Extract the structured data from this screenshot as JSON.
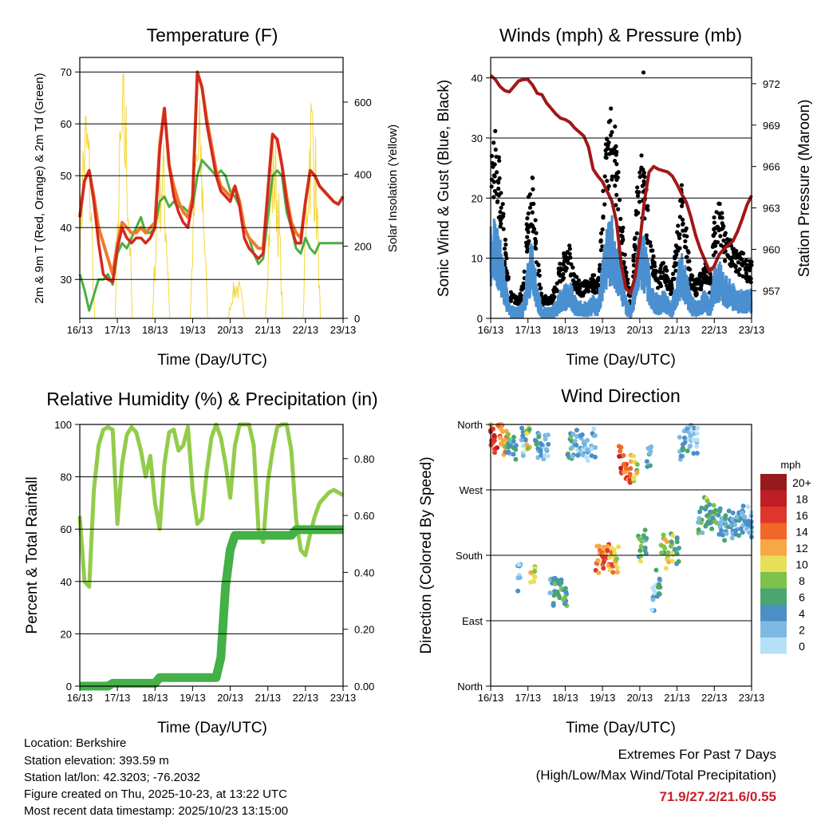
{
  "x_tick_labels": [
    "16/13",
    "17/13",
    "18/13",
    "19/13",
    "20/13",
    "21/13",
    "22/13",
    "23/13"
  ],
  "x_label": "Time (Day/UTC)",
  "chart_data": [
    {
      "type": "line",
      "title": "Temperature (F)",
      "xlabel": "Time (Day/UTC)",
      "ylabel": "2m & 9m T (Red, Orange) & 2m Td (Green)",
      "ylabel_right": "Solar Insolation (Yellow)",
      "x_step_hours": 3,
      "ylim": [
        22.5,
        72.8
      ],
      "ylim_right": [
        0,
        724
      ],
      "yticks": [
        30,
        40,
        50,
        60,
        70
      ],
      "yticks_right": [
        0,
        200,
        400,
        600
      ],
      "colors": {
        "t2m": "#d42a20",
        "t9m": "#f07a28",
        "td": "#4caf40",
        "solar": "#f5d63a"
      },
      "series": [
        {
          "name": "2m T",
          "values": [
            42,
            49,
            51,
            45,
            37,
            31,
            30,
            29.5,
            36,
            40,
            38,
            37,
            38,
            38,
            37,
            38,
            40,
            55,
            63,
            52,
            46,
            43,
            41,
            40,
            45,
            70,
            67,
            60,
            55,
            50,
            47,
            46,
            45,
            48,
            44,
            38,
            36,
            35,
            34,
            35,
            47,
            58,
            57,
            52,
            45,
            40,
            37,
            37,
            45,
            51,
            50,
            48,
            47,
            46,
            45,
            44.5,
            46
          ]
        },
        {
          "name": "9m T",
          "values": [
            42,
            49,
            51,
            46,
            40,
            37,
            34,
            31,
            37,
            41,
            40,
            39,
            39,
            40,
            39,
            40,
            41,
            56,
            63,
            52,
            48,
            45,
            43,
            42,
            46,
            70,
            67,
            61,
            56,
            51,
            48,
            47,
            46,
            48,
            45,
            40,
            38,
            37,
            36,
            36,
            47,
            58,
            57,
            52,
            46,
            41,
            39,
            38,
            45,
            51,
            50,
            48,
            47,
            46,
            45,
            44.5,
            46
          ]
        },
        {
          "name": "2m Td",
          "values": [
            31,
            28,
            24,
            27,
            30,
            30,
            31,
            29,
            35,
            37,
            36,
            38,
            40,
            42,
            39,
            39,
            40,
            45,
            46,
            44,
            45,
            44,
            44,
            43,
            44,
            50,
            53,
            52,
            51,
            50,
            51,
            50,
            47,
            46,
            44,
            40,
            38,
            35,
            33,
            34,
            42,
            50,
            51,
            50,
            43,
            40,
            36,
            35,
            38,
            36,
            35,
            37,
            37,
            37,
            37,
            37,
            37
          ]
        }
      ],
      "solar_daily_peak": [
        660,
        720,
        560,
        640,
        120,
        560,
        700
      ]
    },
    {
      "type": "scatter",
      "title": "Winds (mph) & Pressure (mb)",
      "xlabel": "Time (Day/UTC)",
      "ylabel": "Sonic Wind & Gust (Blue, Black)",
      "ylabel_right": "Station Pressure (Maroon)",
      "x_step_hours": 3,
      "ylim": [
        0,
        43.4
      ],
      "ylim_right": [
        955.0,
        973.9
      ],
      "yticks": [
        0,
        10,
        20,
        30,
        40
      ],
      "yticks_right": [
        957,
        960,
        963,
        966,
        969,
        972
      ],
      "colors": {
        "wind": "#4a90d0",
        "gust": "#000000",
        "pressure": "#a01818"
      },
      "wind_mph": [
        16,
        17,
        14,
        8,
        3,
        2,
        2,
        3,
        10,
        14,
        6,
        2,
        2,
        2,
        3,
        5,
        6,
        7,
        4,
        3,
        3,
        3,
        4,
        3,
        10,
        16,
        18,
        14,
        10,
        4,
        2,
        8,
        17,
        14,
        9,
        5,
        4,
        5,
        4,
        3,
        8,
        12,
        8,
        4,
        3,
        4,
        5,
        3,
        9,
        10,
        8,
        7,
        6,
        5,
        5,
        5,
        5
      ],
      "gust_mph": [
        24,
        25,
        21,
        12,
        4,
        3,
        3,
        5,
        16,
        20,
        9,
        3,
        3,
        3,
        5,
        8,
        9,
        10,
        6,
        5,
        5,
        5,
        6,
        5,
        16,
        28,
        30,
        24,
        16,
        7,
        3,
        12,
        24,
        20,
        14,
        8,
        6,
        8,
        6,
        5,
        12,
        18,
        12,
        6,
        5,
        6,
        8,
        5,
        14,
        16,
        13,
        11,
        10,
        9,
        9,
        8,
        8
      ],
      "gust_max_point": {
        "day": 4.1,
        "mph": 40.9
      },
      "pressure_mb": [
        972.6,
        972.3,
        971.8,
        971.5,
        971.4,
        971.8,
        972.2,
        972.3,
        972.3,
        971.9,
        971.3,
        971.2,
        970.6,
        970.2,
        969.8,
        969.5,
        969.4,
        969.2,
        968.8,
        968.5,
        968.2,
        967.4,
        965.8,
        965.3,
        964.9,
        964.2,
        963.5,
        962.0,
        959.0,
        957.2,
        956.8,
        958.0,
        960.5,
        963.5,
        965.6,
        966.0,
        965.8,
        965.7,
        965.6,
        965.3,
        964.7,
        964.0,
        963.4,
        962.3,
        961.0,
        960.0,
        959.2,
        958.4,
        958.8,
        959.6,
        960.0,
        960.3,
        960.6,
        961.3,
        962.2,
        963.2,
        963.9
      ]
    },
    {
      "type": "line",
      "title": "Relative Humidity (%) & Precipitation (in)",
      "xlabel": "Time (Day/UTC)",
      "ylabel": "Percent & Total Rainfall",
      "x_step_hours": 3,
      "ylim": [
        0,
        100
      ],
      "ylim_right": [
        0,
        0.92
      ],
      "yticks": [
        0,
        20,
        40,
        60,
        80,
        100
      ],
      "yticks_right": [
        "0.00",
        "0.20",
        "0.40",
        "0.60",
        "0.80"
      ],
      "colors": {
        "rh": "#92cc4a",
        "precip": "#44b048"
      },
      "rh_percent": [
        65,
        40,
        38,
        75,
        92,
        98,
        99,
        98,
        62,
        85,
        96,
        99,
        97,
        90,
        80,
        88,
        70,
        60,
        85,
        97,
        98,
        90,
        92,
        99,
        75,
        62,
        64,
        82,
        95,
        100,
        95,
        85,
        72,
        92,
        100,
        100,
        100,
        92,
        60,
        55,
        78,
        90,
        99,
        100,
        100,
        90,
        64,
        52,
        50,
        58,
        65,
        70,
        72,
        74,
        75,
        74,
        73
      ],
      "precip_in": [
        0,
        0,
        0,
        0,
        0,
        0,
        0,
        0.01,
        0.01,
        0.01,
        0.01,
        0.01,
        0.01,
        0.01,
        0.01,
        0.01,
        0.01,
        0.03,
        0.03,
        0.03,
        0.03,
        0.03,
        0.03,
        0.03,
        0.03,
        0.03,
        0.03,
        0.03,
        0.03,
        0.03,
        0.1,
        0.35,
        0.48,
        0.53,
        0.53,
        0.53,
        0.53,
        0.53,
        0.53,
        0.53,
        0.53,
        0.53,
        0.53,
        0.53,
        0.53,
        0.53,
        0.55,
        0.55,
        0.55,
        0.55,
        0.55,
        0.55,
        0.55,
        0.55,
        0.55,
        0.55,
        0.55
      ]
    },
    {
      "type": "scatter",
      "title": "Wind Direction",
      "xlabel": "Time (Day/UTC)",
      "ylabel": "Direction (Colored By Speed)",
      "x_step_hours": 3,
      "ylim": [
        0,
        360
      ],
      "yticks": [
        0,
        90,
        180,
        270,
        360
      ],
      "ytick_labels": [
        "North",
        "East",
        "South",
        "West",
        "North"
      ],
      "direction_deg": [
        340,
        340,
        345,
        335,
        330,
        330,
        150,
        335,
        340,
        160,
        330,
        330,
        330,
        130,
        140,
        135,
        130,
        330,
        335,
        330,
        330,
        330,
        335,
        175,
        175,
        175,
        175,
        175,
        310,
        305,
        300,
        300,
        190,
        200,
        320,
        120,
        140,
        190,
        180,
        190,
        185,
        330,
        335,
        340,
        335,
        230,
        240,
        235,
        230,
        225,
        220,
        225,
        220,
        225,
        230,
        230,
        225
      ],
      "speed_mph": [
        16,
        17,
        15,
        12,
        6,
        5,
        3,
        4,
        10,
        12,
        5,
        3,
        3,
        5,
        7,
        6,
        6,
        7,
        4,
        3,
        3,
        3,
        4,
        14,
        15,
        15,
        14,
        12,
        17,
        16,
        15,
        10,
        8,
        6,
        4,
        3,
        5,
        10,
        11,
        9,
        6,
        5,
        4,
        3,
        3,
        6,
        8,
        7,
        7,
        6,
        5,
        5,
        5,
        4,
        4,
        4,
        4
      ],
      "legend": {
        "title": "mph",
        "labels": [
          "20+",
          "18",
          "16",
          "14",
          "12",
          "10",
          "8",
          "6",
          "4",
          "2",
          "0"
        ],
        "colors": [
          "#961a1e",
          "#bf1e24",
          "#e0352a",
          "#f26628",
          "#f7a845",
          "#e8de58",
          "#7cc24c",
          "#48a66e",
          "#4a8fc6",
          "#7eb9e4",
          "#b6e0f6"
        ]
      }
    }
  ],
  "info": {
    "location": "Location: Berkshire",
    "elevation": "Station elevation: 393.59 m",
    "latlon": "Station lat/lon: 42.3203; -76.2032",
    "created": "Figure created on Thu, 2025-10-23, at 13:22 UTC",
    "timestamp": "Most recent data timestamp: 2025/10/23 13:15:00"
  },
  "extremes": {
    "line1": "Extremes For Past 7 Days",
    "line2": "(High/Low/Max Wind/Total Precipitation)",
    "values": "71.9/27.2/21.6/0.55"
  }
}
